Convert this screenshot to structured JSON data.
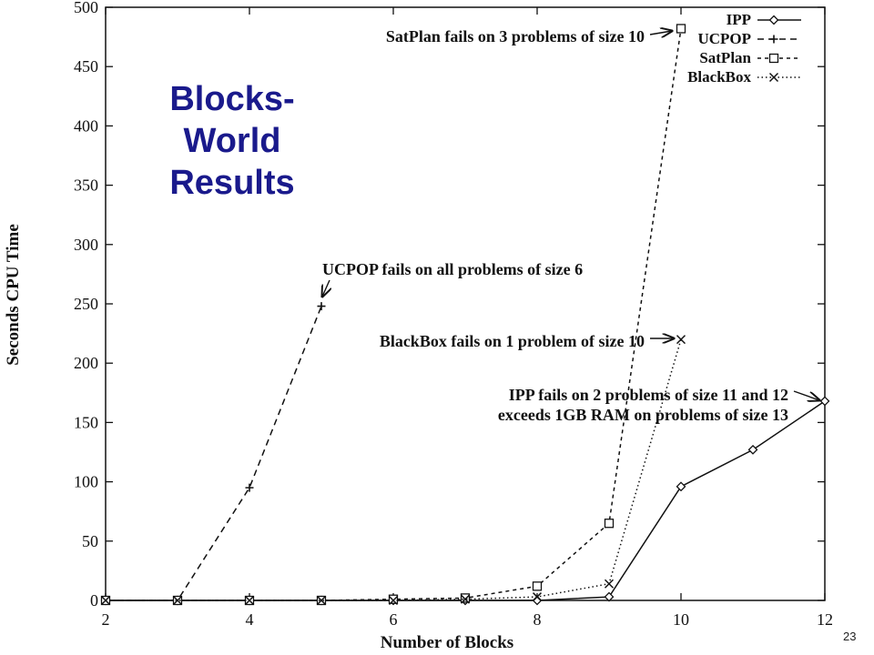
{
  "slide": {
    "title_lines": [
      "Blocks-",
      "World",
      "Results"
    ],
    "page_number": "23"
  },
  "chart_data": {
    "type": "line",
    "xlabel": "Number of Blocks",
    "ylabel": "Seconds CPU Time",
    "xlim": [
      2,
      12
    ],
    "ylim": [
      0,
      500
    ],
    "xticks": [
      2,
      4,
      6,
      8,
      10,
      12
    ],
    "yticks": [
      0,
      50,
      100,
      150,
      200,
      250,
      300,
      350,
      400,
      450,
      500
    ],
    "series": [
      {
        "name": "IPP",
        "line_style": "solid",
        "marker": "diamond",
        "points": [
          [
            2,
            0
          ],
          [
            3,
            0
          ],
          [
            4,
            0
          ],
          [
            5,
            0
          ],
          [
            6,
            0
          ],
          [
            7,
            0
          ],
          [
            8,
            0
          ],
          [
            9,
            3
          ],
          [
            10,
            96
          ],
          [
            11,
            127
          ],
          [
            12,
            168
          ]
        ]
      },
      {
        "name": "UCPOP",
        "line_style": "dashed",
        "marker": "plus",
        "points": [
          [
            2,
            0
          ],
          [
            3,
            0
          ],
          [
            4,
            95
          ],
          [
            5,
            248
          ]
        ]
      },
      {
        "name": "SatPlan",
        "line_style": "short-dashed",
        "marker": "square",
        "points": [
          [
            2,
            0
          ],
          [
            3,
            0
          ],
          [
            4,
            0
          ],
          [
            5,
            0
          ],
          [
            6,
            1
          ],
          [
            7,
            2
          ],
          [
            8,
            12
          ],
          [
            9,
            65
          ],
          [
            10,
            482
          ]
        ]
      },
      {
        "name": "BlackBox",
        "line_style": "dotted",
        "marker": "x",
        "points": [
          [
            2,
            0
          ],
          [
            3,
            0
          ],
          [
            4,
            0
          ],
          [
            5,
            0
          ],
          [
            6,
            0
          ],
          [
            7,
            1
          ],
          [
            8,
            3
          ],
          [
            9,
            14
          ],
          [
            10,
            220
          ]
        ]
      }
    ],
    "legend_position": "top-right",
    "annotations": [
      {
        "lines": [
          "SatPlan fails on 3 problems of size 10"
        ]
      },
      {
        "lines": [
          "UCPOP fails on all problems of size 6"
        ]
      },
      {
        "lines": [
          "BlackBox fails on 1 problem of size 10"
        ]
      },
      {
        "lines": [
          "IPP fails on 2 problems of size 11 and 12",
          "exceeds 1GB RAM on problems of size 13"
        ]
      }
    ]
  }
}
